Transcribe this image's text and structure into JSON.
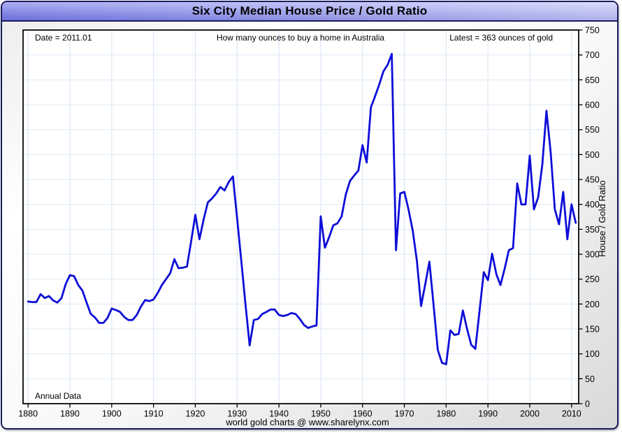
{
  "window": {
    "title": "Six City Median House Price / Gold Ratio"
  },
  "annotations": {
    "date": "Date = 2011.01",
    "subtitle": "How many ounces to buy a home in Australia",
    "latest": "Latest = 363 ounces of gold",
    "frequency": "Annual Data",
    "footer": "world gold charts @ www.sharelynx.com"
  },
  "axis": {
    "y_label": "House / Gold Ratio"
  },
  "colors": {
    "line": "#0e0ed8",
    "v_grid": "#d4e3f3",
    "h_grid": "#dfeaf6",
    "plot_border": "#000000",
    "window_border": "#1b1b5e",
    "titlebar_left": "#7579e8",
    "titlebar_right": "#c2c5fa",
    "plot_bg": "#ffffff"
  },
  "chart_data": {
    "type": "line",
    "title": "Six City Median House Price / Gold Ratio",
    "subtitle": "How many ounces to buy a home in Australia",
    "xlabel": "",
    "ylabel": "House / Gold Ratio",
    "xlim": [
      1878.8,
      2011.7
    ],
    "ylim": [
      0,
      750
    ],
    "x_ticks": [
      1880,
      1890,
      1900,
      1910,
      1920,
      1930,
      1940,
      1950,
      1960,
      1970,
      1980,
      1990,
      2000,
      2010
    ],
    "y_ticks": [
      0,
      50,
      100,
      150,
      200,
      250,
      300,
      350,
      400,
      450,
      500,
      550,
      600,
      650,
      700,
      750
    ],
    "grid": true,
    "legend": "none",
    "data_frequency": "Annual Data",
    "latest_point": {
      "date": "2011.01",
      "value": 363
    },
    "series": [
      {
        "name": "Six City Median House Price / Gold Ratio (ounces of gold to buy a home in Australia)",
        "x_start": 1880,
        "x_step": 1,
        "values": [
          205,
          204,
          204,
          220,
          212,
          216,
          207,
          203,
          212,
          240,
          258,
          256,
          238,
          227,
          203,
          180,
          173,
          162,
          162,
          172,
          191,
          188,
          184,
          174,
          168,
          168,
          178,
          195,
          208,
          206,
          209,
          222,
          238,
          250,
          262,
          290,
          272,
          273,
          275,
          326,
          379,
          330,
          370,
          404,
          412,
          422,
          435,
          428,
          445,
          456,
          372,
          286,
          200,
          117,
          168,
          170,
          180,
          184,
          189,
          189,
          178,
          176,
          178,
          182,
          180,
          170,
          158,
          152,
          155,
          157,
          376,
          313,
          334,
          358,
          362,
          376,
          420,
          447,
          458,
          468,
          519,
          484,
          595,
          617,
          641,
          667,
          680,
          702,
          308,
          422,
          425,
          390,
          348,
          287,
          196,
          240,
          285,
          198,
          108,
          82,
          79,
          147,
          138,
          140,
          187,
          150,
          118,
          110,
          187,
          264,
          248,
          301,
          260,
          238,
          271,
          308,
          312,
          442,
          400,
          400,
          498,
          390,
          414,
          480,
          588,
          505,
          390,
          360,
          425,
          330,
          400,
          363
        ]
      }
    ]
  }
}
